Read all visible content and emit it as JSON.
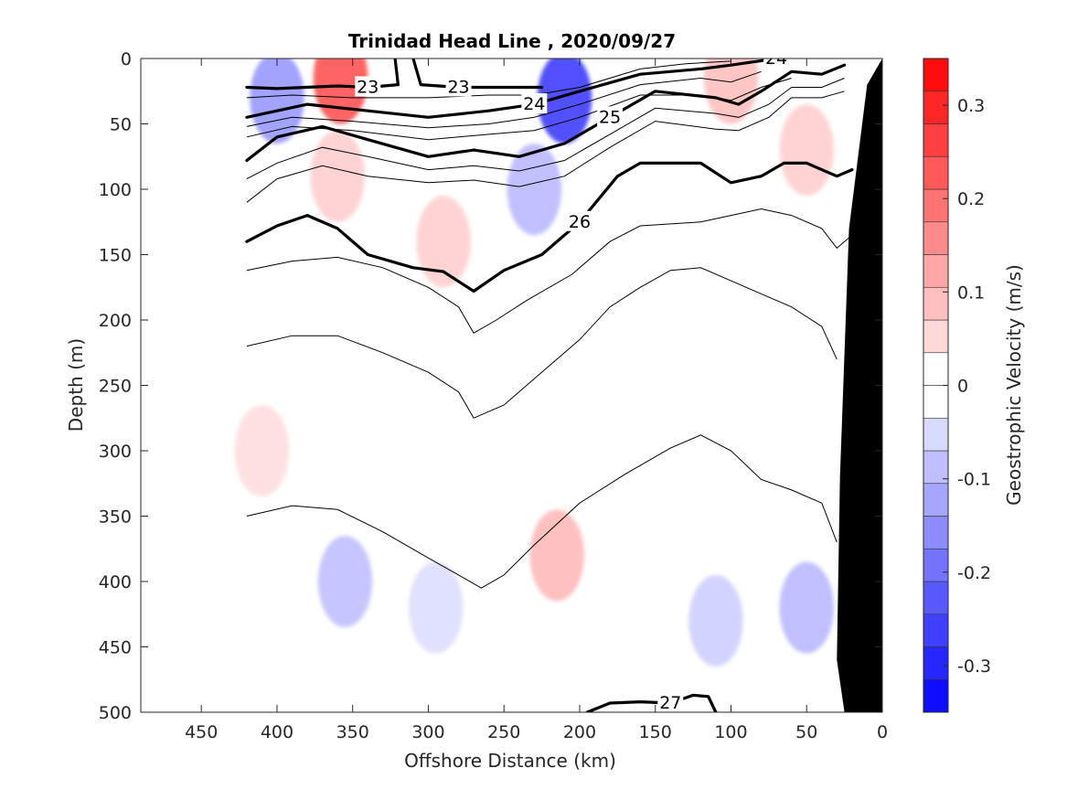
{
  "chart_data": {
    "type": "contour",
    "title": "Trinidad Head Line , 2020/09/27",
    "xlabel": "Offshore Distance (km)",
    "ylabel": "Depth (m)",
    "xlim": [
      490,
      0
    ],
    "ylim": [
      0,
      500
    ],
    "x_reversed": true,
    "y_reversed": true,
    "xticks": [
      450,
      400,
      350,
      300,
      250,
      200,
      150,
      100,
      50,
      0
    ],
    "yticks": [
      0,
      50,
      100,
      150,
      200,
      250,
      300,
      350,
      400,
      450,
      500
    ],
    "colorbar": {
      "label": "Geostrophic Velocity (m/s)",
      "range": [
        -0.35,
        0.35
      ],
      "levels": 20,
      "ticks": [
        -0.3,
        -0.2,
        -0.1,
        0,
        0.1,
        0.2,
        0.3
      ],
      "tick_labels": [
        "-0.3",
        "-0.2",
        "-0.1",
        "0",
        "0.1",
        "0.2",
        "0.3"
      ],
      "negative_color": "#0000ff",
      "positive_color": "#ff0000"
    },
    "velocity_patches": [
      {
        "x": 400,
        "depth": 30,
        "value": -0.15
      },
      {
        "x": 358,
        "depth": 15,
        "value": 0.25
      },
      {
        "x": 360,
        "depth": 90,
        "value": 0.07
      },
      {
        "x": 210,
        "depth": 30,
        "value": -0.28
      },
      {
        "x": 230,
        "depth": 100,
        "value": -0.1
      },
      {
        "x": 100,
        "depth": 15,
        "value": 0.09
      },
      {
        "x": 50,
        "depth": 70,
        "value": 0.07
      },
      {
        "x": 290,
        "depth": 140,
        "value": 0.07
      },
      {
        "x": 410,
        "depth": 300,
        "value": 0.05
      },
      {
        "x": 355,
        "depth": 400,
        "value": -0.09
      },
      {
        "x": 295,
        "depth": 420,
        "value": -0.05
      },
      {
        "x": 215,
        "depth": 380,
        "value": 0.1
      },
      {
        "x": 110,
        "depth": 430,
        "value": -0.07
      },
      {
        "x": 50,
        "depth": 420,
        "value": -0.1
      }
    ],
    "density_contours": [
      {
        "label": "23",
        "bold": true,
        "points": [
          [
            420,
            22
          ],
          [
            400,
            23
          ],
          [
            360,
            21
          ],
          [
            340,
            22
          ],
          [
            320,
            20
          ],
          [
            322,
            0
          ]
        ]
      },
      {
        "label": "23",
        "bold": true,
        "points": [
          [
            310,
            0
          ],
          [
            305,
            20
          ],
          [
            280,
            22
          ],
          [
            250,
            22
          ],
          [
            225,
            22
          ]
        ]
      },
      {
        "label": "24",
        "bold": true,
        "points": [
          [
            420,
            45
          ],
          [
            380,
            35
          ],
          [
            340,
            40
          ],
          [
            300,
            45
          ],
          [
            260,
            40
          ],
          [
            230,
            35
          ],
          [
            200,
            25
          ],
          [
            160,
            12
          ],
          [
            120,
            8
          ],
          [
            100,
            5
          ]
        ]
      },
      {
        "label": "24",
        "bold": true,
        "points": [
          [
            100,
            5
          ],
          [
            70,
            0
          ]
        ]
      },
      {
        "label": "25",
        "bold": true,
        "points": [
          [
            420,
            78
          ],
          [
            400,
            60
          ],
          [
            370,
            52
          ],
          [
            340,
            62
          ],
          [
            300,
            75
          ],
          [
            270,
            70
          ],
          [
            240,
            75
          ],
          [
            210,
            65
          ],
          [
            180,
            45
          ],
          [
            150,
            25
          ],
          [
            110,
            30
          ],
          [
            95,
            35
          ],
          [
            80,
            25
          ],
          [
            60,
            10
          ],
          [
            40,
            12
          ],
          [
            25,
            5
          ]
        ]
      },
      {
        "label": "26",
        "bold": true,
        "points": [
          [
            420,
            140
          ],
          [
            400,
            128
          ],
          [
            380,
            120
          ],
          [
            360,
            130
          ],
          [
            340,
            150
          ],
          [
            310,
            160
          ],
          [
            290,
            163
          ],
          [
            270,
            178
          ],
          [
            250,
            162
          ],
          [
            225,
            150
          ],
          [
            200,
            125
          ],
          [
            175,
            90
          ],
          [
            160,
            80
          ],
          [
            140,
            80
          ],
          [
            120,
            80
          ],
          [
            100,
            95
          ],
          [
            80,
            90
          ],
          [
            65,
            80
          ],
          [
            50,
            80
          ],
          [
            30,
            90
          ],
          [
            20,
            85
          ]
        ]
      },
      {
        "label": "27",
        "bold": true,
        "points": [
          [
            195,
            500
          ],
          [
            180,
            493
          ],
          [
            160,
            492
          ],
          [
            140,
            493
          ],
          [
            125,
            487
          ],
          [
            115,
            488
          ],
          [
            110,
            500
          ]
        ]
      }
    ],
    "thin_contours": [
      {
        "points": [
          [
            420,
            30
          ],
          [
            390,
            28
          ],
          [
            350,
            30
          ],
          [
            300,
            30
          ],
          [
            260,
            28
          ],
          [
            230,
            28
          ],
          [
            200,
            22
          ],
          [
            160,
            8
          ],
          [
            130,
            4
          ],
          [
            100,
            2
          ]
        ]
      },
      {
        "points": [
          [
            420,
            52
          ],
          [
            390,
            45
          ],
          [
            350,
            48
          ],
          [
            300,
            53
          ],
          [
            260,
            50
          ],
          [
            230,
            45
          ],
          [
            200,
            35
          ],
          [
            160,
            20
          ],
          [
            120,
            15
          ],
          [
            100,
            18
          ],
          [
            80,
            10
          ]
        ]
      },
      {
        "points": [
          [
            420,
            60
          ],
          [
            390,
            52
          ],
          [
            350,
            55
          ],
          [
            300,
            62
          ],
          [
            260,
            58
          ],
          [
            230,
            55
          ],
          [
            200,
            45
          ],
          [
            160,
            28
          ],
          [
            120,
            28
          ],
          [
            100,
            32
          ],
          [
            80,
            22
          ],
          [
            60,
            15
          ]
        ]
      },
      {
        "points": [
          [
            420,
            92
          ],
          [
            400,
            80
          ],
          [
            370,
            68
          ],
          [
            340,
            75
          ],
          [
            300,
            85
          ],
          [
            270,
            82
          ],
          [
            240,
            86
          ],
          [
            210,
            78
          ],
          [
            180,
            58
          ],
          [
            150,
            38
          ],
          [
            110,
            42
          ],
          [
            95,
            45
          ],
          [
            75,
            35
          ],
          [
            60,
            22
          ],
          [
            40,
            22
          ],
          [
            25,
            15
          ]
        ]
      },
      {
        "points": [
          [
            420,
            110
          ],
          [
            400,
            92
          ],
          [
            370,
            82
          ],
          [
            340,
            90
          ],
          [
            300,
            95
          ],
          [
            270,
            93
          ],
          [
            240,
            98
          ],
          [
            210,
            90
          ],
          [
            180,
            68
          ],
          [
            150,
            48
          ],
          [
            110,
            54
          ],
          [
            95,
            55
          ],
          [
            75,
            45
          ],
          [
            60,
            30
          ],
          [
            40,
            30
          ],
          [
            25,
            25
          ]
        ]
      },
      {
        "points": [
          [
            420,
            162
          ],
          [
            390,
            155
          ],
          [
            360,
            152
          ],
          [
            330,
            160
          ],
          [
            300,
            175
          ],
          [
            280,
            190
          ],
          [
            270,
            210
          ],
          [
            255,
            200
          ],
          [
            235,
            185
          ],
          [
            205,
            165
          ],
          [
            180,
            140
          ],
          [
            160,
            128
          ],
          [
            120,
            125
          ],
          [
            100,
            120
          ],
          [
            80,
            115
          ],
          [
            60,
            120
          ],
          [
            40,
            130
          ],
          [
            30,
            145
          ],
          [
            20,
            135
          ]
        ]
      },
      {
        "points": [
          [
            420,
            220
          ],
          [
            390,
            212
          ],
          [
            360,
            212
          ],
          [
            330,
            225
          ],
          [
            300,
            240
          ],
          [
            280,
            255
          ],
          [
            270,
            275
          ],
          [
            250,
            265
          ],
          [
            230,
            245
          ],
          [
            200,
            215
          ],
          [
            180,
            190
          ],
          [
            160,
            175
          ],
          [
            140,
            162
          ],
          [
            120,
            160
          ],
          [
            100,
            170
          ],
          [
            80,
            180
          ],
          [
            60,
            190
          ],
          [
            40,
            205
          ],
          [
            30,
            230
          ]
        ]
      },
      {
        "points": [
          [
            420,
            350
          ],
          [
            390,
            342
          ],
          [
            360,
            345
          ],
          [
            330,
            362
          ],
          [
            300,
            382
          ],
          [
            280,
            395
          ],
          [
            265,
            405
          ],
          [
            250,
            395
          ],
          [
            230,
            372
          ],
          [
            200,
            340
          ],
          [
            170,
            318
          ],
          [
            140,
            298
          ],
          [
            120,
            288
          ],
          [
            100,
            300
          ],
          [
            80,
            322
          ],
          [
            60,
            330
          ],
          [
            40,
            340
          ],
          [
            30,
            370
          ]
        ]
      }
    ],
    "bathymetry": {
      "points": [
        [
          0,
          0
        ],
        [
          0,
          500
        ],
        [
          25,
          500
        ],
        [
          30,
          460
        ],
        [
          28,
          320
        ],
        [
          22,
          130
        ],
        [
          10,
          20
        ]
      ]
    }
  }
}
